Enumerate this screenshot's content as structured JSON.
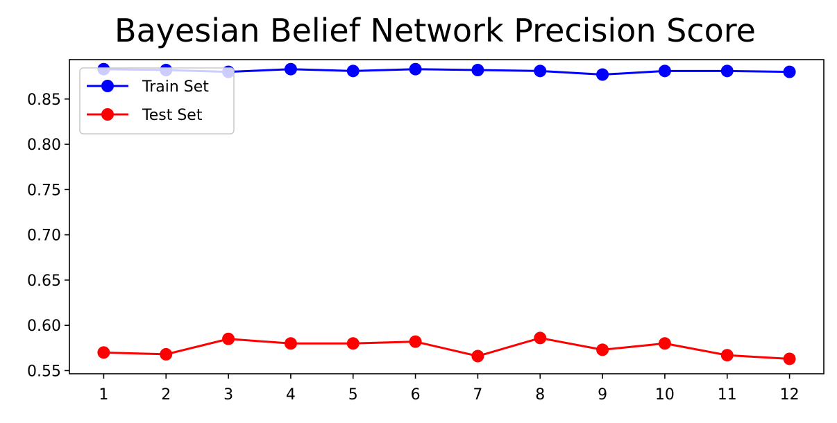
{
  "chart_data": {
    "type": "line",
    "title": "Bayesian Belief Network Precision Score",
    "xlabel": "",
    "ylabel": "",
    "x": [
      1,
      2,
      3,
      4,
      5,
      6,
      7,
      8,
      9,
      10,
      11,
      12
    ],
    "xticks": [
      "1",
      "2",
      "3",
      "4",
      "5",
      "6",
      "7",
      "8",
      "9",
      "10",
      "11",
      "12"
    ],
    "yticks": [
      "0.55",
      "0.60",
      "0.65",
      "0.70",
      "0.75",
      "0.80",
      "0.85"
    ],
    "ytick_values": [
      0.55,
      0.6,
      0.65,
      0.7,
      0.75,
      0.8,
      0.85
    ],
    "xlim": [
      0.45,
      12.55
    ],
    "ylim": [
      0.5465,
      0.8935
    ],
    "grid": false,
    "legend_position": "upper left",
    "series": [
      {
        "name": "Train Set",
        "color": "#0000ff",
        "marker": "circle",
        "values": [
          0.883,
          0.882,
          0.88,
          0.883,
          0.881,
          0.883,
          0.882,
          0.881,
          0.877,
          0.881,
          0.881,
          0.88
        ]
      },
      {
        "name": "Test Set",
        "color": "#ff0000",
        "marker": "circle",
        "values": [
          0.57,
          0.568,
          0.585,
          0.58,
          0.58,
          0.582,
          0.566,
          0.586,
          0.573,
          0.58,
          0.567,
          0.563
        ]
      }
    ]
  }
}
